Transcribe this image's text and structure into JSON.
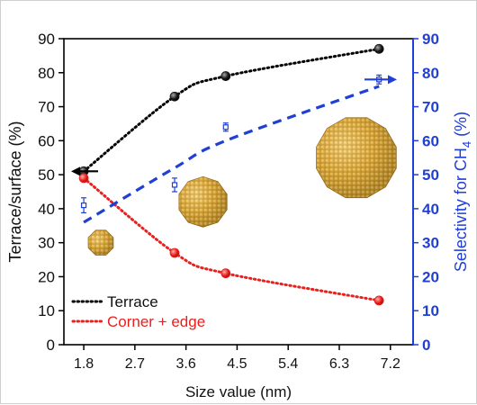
{
  "chart_data": {
    "type": "line",
    "xlabel": "Size value (nm)",
    "ylabel_left": "Terrace/surface (%)",
    "ylabel_right": "Selectivity for CH",
    "ylabel_right_subscript": "4",
    "ylabel_right_suffix": " (%)",
    "xlim": [
      1.45,
      7.6
    ],
    "ylim": [
      0,
      90
    ],
    "ylim_right": [
      0,
      90
    ],
    "x_ticks": [
      "1.8",
      "2.7",
      "3.6",
      "4.5",
      "5.4",
      "6.3",
      "7.2"
    ],
    "y_ticks": [
      "0",
      "10",
      "20",
      "30",
      "40",
      "50",
      "60",
      "70",
      "80",
      "90"
    ],
    "legend_position": "bottom-left",
    "grid": false,
    "series": [
      {
        "name": "Terrace",
        "color": "#000000",
        "marker_color": "#1a1a1a",
        "axis": "left",
        "style": "dotted",
        "x": [
          1.8,
          3.4,
          4.3,
          7.0
        ],
        "values": [
          51,
          73,
          79,
          87
        ]
      },
      {
        "name": "Corner + edge",
        "color": "#e8201e",
        "marker_color": "#e8201e",
        "axis": "left",
        "style": "dotted",
        "x": [
          1.8,
          3.4,
          4.3,
          7.0
        ],
        "values": [
          49,
          27,
          21,
          13
        ]
      },
      {
        "color": "#1f3fd6",
        "axis": "right",
        "style": "points-with-error",
        "x": [
          1.8,
          3.4,
          4.3,
          7.0
        ],
        "values": [
          41,
          47,
          64,
          78
        ],
        "error": [
          2.2,
          2,
          1.2,
          1.3
        ]
      },
      {
        "color": "#1f3fd6",
        "axis": "right",
        "style": "dashed-trend",
        "x": [
          1.8,
          3.4,
          4.3,
          7.0
        ],
        "values": [
          36,
          52,
          60,
          76
        ]
      }
    ],
    "annotations": {
      "left_arrow_color": "#000000",
      "right_arrow_color": "#1f3fd6",
      "nanoparticle_color": "#c9962b",
      "nanoparticles": [
        {
          "x": 2.1,
          "y": 30
        },
        {
          "x": 3.9,
          "y": 42
        },
        {
          "x": 6.6,
          "y": 55
        }
      ]
    }
  }
}
